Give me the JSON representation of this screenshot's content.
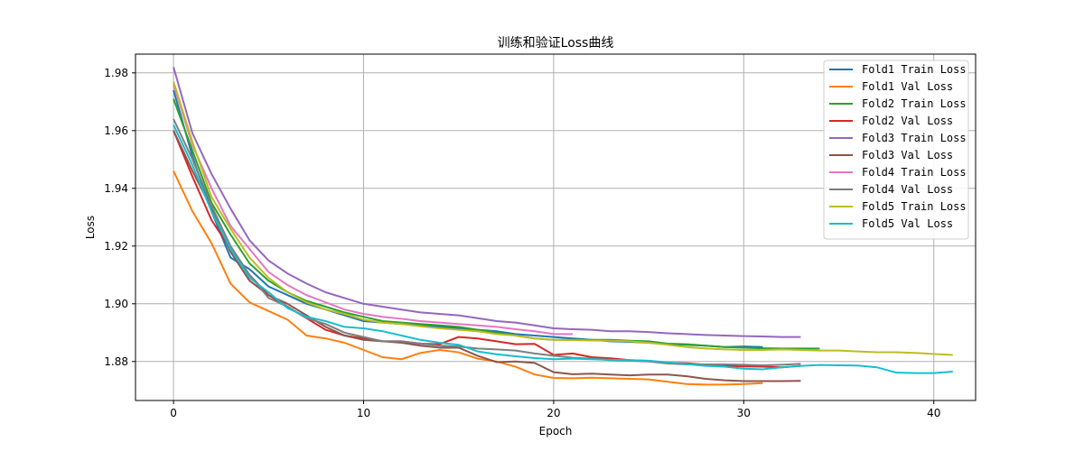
{
  "chart_data": {
    "type": "line",
    "title": "训练和验证Loss曲线",
    "xlabel": "Epoch",
    "ylabel": "Loss",
    "xlim": [
      -2,
      42.2
    ],
    "ylim": [
      1.8665,
      1.9865
    ],
    "xticks": [
      0,
      10,
      20,
      30,
      40
    ],
    "yticks": [
      1.88,
      1.9,
      1.92,
      1.94,
      1.96,
      1.98
    ],
    "ytick_labels": [
      "1.88",
      "1.90",
      "1.92",
      "1.94",
      "1.96",
      "1.98"
    ],
    "grid": true,
    "legend_position": "top-right",
    "series": [
      {
        "name": "Fold1 Train Loss",
        "color": "#1f77b4",
        "values": [
          1.974,
          1.951,
          1.932,
          1.916,
          1.912,
          1.906,
          1.903,
          1.9,
          1.898,
          1.896,
          1.894,
          1.8935,
          1.893,
          1.8925,
          1.892,
          1.8915,
          1.891,
          1.8905,
          1.8895,
          1.889,
          1.8885,
          1.888,
          1.8875,
          1.887,
          1.8868,
          1.8865,
          1.886,
          1.8858,
          1.8855,
          1.885,
          1.8852,
          1.885
        ]
      },
      {
        "name": "Fold1 Val Loss",
        "color": "#ff7f0e",
        "values": [
          1.946,
          1.932,
          1.921,
          1.907,
          1.9005,
          1.8975,
          1.8945,
          1.889,
          1.888,
          1.8865,
          1.884,
          1.8815,
          1.8808,
          1.883,
          1.884,
          1.8832,
          1.881,
          1.88,
          1.8782,
          1.8755,
          1.8743,
          1.8742,
          1.8744,
          1.8742,
          1.874,
          1.8738,
          1.873,
          1.8722,
          1.872,
          1.872,
          1.8722,
          1.8725
        ]
      },
      {
        "name": "Fold2 Train Loss",
        "color": "#2ca02c",
        "values": [
          1.971,
          1.953,
          1.935,
          1.924,
          1.914,
          1.908,
          1.904,
          1.901,
          1.899,
          1.897,
          1.8955,
          1.894,
          1.8935,
          1.893,
          1.8925,
          1.892,
          1.891,
          1.89,
          1.889,
          1.888,
          1.8875,
          1.8875,
          1.8875,
          1.8875,
          1.8872,
          1.887,
          1.8862,
          1.886,
          1.8855,
          1.885,
          1.8848,
          1.8846,
          1.8845,
          1.8845,
          1.8845
        ]
      },
      {
        "name": "Fold2 Val Loss",
        "color": "#d62728",
        "values": [
          1.96,
          1.944,
          1.929,
          1.919,
          1.91,
          1.903,
          1.899,
          1.895,
          1.891,
          1.889,
          1.888,
          1.887,
          1.887,
          1.8862,
          1.886,
          1.8885,
          1.888,
          1.887,
          1.886,
          1.8861,
          1.8823,
          1.8828,
          1.8815,
          1.8811,
          1.8805,
          1.8802,
          1.8796,
          1.8794,
          1.8789,
          1.8785,
          1.8783,
          1.8782,
          1.878,
          1.8785
        ]
      },
      {
        "name": "Fold3 Train Loss",
        "color": "#9467bd",
        "values": [
          1.982,
          1.959,
          1.945,
          1.933,
          1.922,
          1.915,
          1.9105,
          1.907,
          1.904,
          1.902,
          1.9,
          1.899,
          1.898,
          1.897,
          1.8965,
          1.896,
          1.895,
          1.894,
          1.8935,
          1.8925,
          1.8915,
          1.8912,
          1.891,
          1.8905,
          1.8905,
          1.8902,
          1.8898,
          1.8895,
          1.8892,
          1.889,
          1.8888,
          1.8887,
          1.8885,
          1.8885
        ]
      },
      {
        "name": "Fold3 Val Loss",
        "color": "#8c564b",
        "values": [
          1.96,
          1.946,
          1.933,
          1.918,
          1.908,
          1.903,
          1.9,
          1.896,
          1.892,
          1.889,
          1.8875,
          1.887,
          1.8865,
          1.8855,
          1.8848,
          1.8848,
          1.882,
          1.8798,
          1.88,
          1.8795,
          1.8763,
          1.8756,
          1.8758,
          1.8755,
          1.8752,
          1.8755,
          1.8755,
          1.8749,
          1.874,
          1.8735,
          1.8732,
          1.8732,
          1.8732,
          1.8733
        ]
      },
      {
        "name": "Fold4 Train Loss",
        "color": "#e377c2",
        "values": [
          1.976,
          1.955,
          1.94,
          1.927,
          1.919,
          1.911,
          1.9065,
          1.903,
          1.9005,
          1.898,
          1.8965,
          1.8955,
          1.8948,
          1.894,
          1.8935,
          1.893,
          1.8925,
          1.892,
          1.8912,
          1.8905,
          1.8895,
          1.8895
        ]
      },
      {
        "name": "Fold4 Val Loss",
        "color": "#7f7f7f",
        "values": [
          1.964,
          1.95,
          1.934,
          1.92,
          1.91,
          1.902,
          1.899,
          1.895,
          1.893,
          1.89,
          1.8885,
          1.887,
          1.887,
          1.8862,
          1.8855,
          1.8852,
          1.8845,
          1.8842,
          1.8838,
          1.8828,
          1.882,
          1.8813,
          1.881,
          1.8805,
          1.8803,
          1.88,
          1.8793,
          1.879,
          1.879,
          1.879,
          1.8789,
          1.8787,
          1.8789,
          1.8792
        ]
      },
      {
        "name": "Fold5 Train Loss",
        "color": "#bcbd22",
        "values": [
          1.977,
          1.956,
          1.937,
          1.926,
          1.916,
          1.909,
          1.904,
          1.9005,
          1.898,
          1.8965,
          1.8945,
          1.8935,
          1.893,
          1.8922,
          1.8915,
          1.891,
          1.8905,
          1.8895,
          1.889,
          1.888,
          1.8875,
          1.8874,
          1.8873,
          1.8872,
          1.887,
          1.8865,
          1.8858,
          1.885,
          1.8845,
          1.8842,
          1.884,
          1.884,
          1.8842,
          1.884,
          1.8838,
          1.8838,
          1.8835,
          1.8832,
          1.8832,
          1.883,
          1.8826,
          1.8823
        ]
      },
      {
        "name": "Fold5 Val Loss",
        "color": "#17becf",
        "values": [
          1.962,
          1.948,
          1.932,
          1.919,
          1.909,
          1.904,
          1.8985,
          1.8955,
          1.894,
          1.892,
          1.8915,
          1.8905,
          1.889,
          1.8875,
          1.8865,
          1.8858,
          1.8835,
          1.8825,
          1.8818,
          1.8812,
          1.8808,
          1.881,
          1.8808,
          1.8806,
          1.8805,
          1.8803,
          1.8797,
          1.8791,
          1.8785,
          1.8782,
          1.8775,
          1.8773,
          1.878,
          1.8785,
          1.8788,
          1.8787,
          1.8786,
          1.878,
          1.8762,
          1.876,
          1.876,
          1.8765
        ]
      }
    ]
  }
}
